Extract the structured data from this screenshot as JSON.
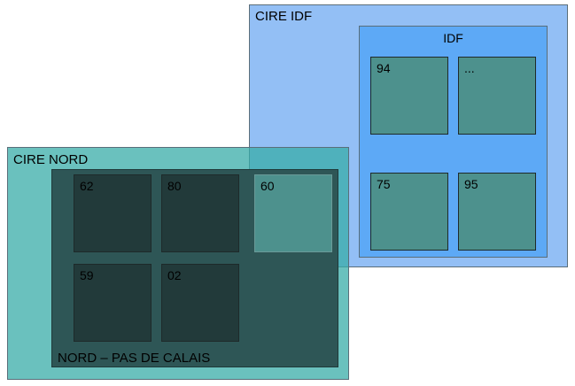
{
  "regions": {
    "cire_idf": {
      "label": "CIRE IDF",
      "color": "#93bff5"
    },
    "idf": {
      "label": "IDF",
      "color": "#5da9f6"
    },
    "cire_nord": {
      "label": "CIRE NORD",
      "color": "#6dbfbd"
    },
    "nord_pdc": {
      "label": "NORD – PAS DE CALAIS",
      "color": "#2e5656"
    }
  },
  "departments": {
    "idf": [
      "94",
      "...",
      "75",
      "95"
    ],
    "nord_pdc": [
      "62",
      "80",
      "60",
      "59",
      "02"
    ]
  }
}
